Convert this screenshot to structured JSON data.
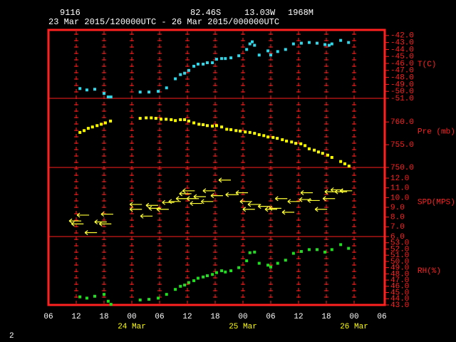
{
  "header": {
    "station": "9116",
    "lat": "82.46S",
    "lon": "13.03W",
    "elevation": "1968M",
    "period": "23 Mar 2015/120000UTC - 26 Mar 2015/000000UTC"
  },
  "page_number": "2",
  "chart_data": [
    {
      "type": "scatter",
      "marker": "square",
      "ylabel": "T(C)",
      "color": "#33d6e6",
      "xlim": [
        0,
        72
      ],
      "ylim": [
        -51,
        -41.2
      ],
      "yticks": [
        {
          "value": -42,
          "label": "-42.0"
        },
        {
          "value": -43,
          "label": "-43.0"
        },
        {
          "value": -44,
          "label": "-44.0"
        },
        {
          "value": -45,
          "label": "-45.0"
        },
        {
          "value": -46,
          "label": "-46.0"
        },
        {
          "value": -47,
          "label": "-47.0"
        },
        {
          "value": -48,
          "label": "-48.0"
        },
        {
          "value": -49,
          "label": "-49.0"
        },
        {
          "value": -50,
          "label": "-50.0"
        },
        {
          "value": -51,
          "label": "-51.0"
        }
      ],
      "x": [
        6.8,
        8.3,
        10.0,
        12.0,
        12.9,
        13.5,
        19.8,
        21.7,
        23.7,
        25.5,
        27.4,
        28.5,
        29.4,
        30.3,
        31.4,
        32.3,
        33.4,
        34.3,
        35.4,
        36.3,
        37.4,
        38.2,
        39.4,
        41.1,
        42.8,
        43.5,
        44.0,
        44.5,
        45.5,
        47.4,
        48.0,
        49.5,
        51.2,
        52.9,
        54.6,
        56.3,
        58.0,
        59.7,
        60.6,
        61.2,
        63.1,
        64.8
      ],
      "values": [
        -49.6,
        -49.8,
        -49.7,
        -50.3,
        -50.8,
        -50.8,
        -50.1,
        -50.1,
        -50.0,
        -49.5,
        -48.2,
        -47.6,
        -47.4,
        -47.0,
        -46.4,
        -46.1,
        -46.1,
        -45.9,
        -45.9,
        -45.4,
        -45.3,
        -45.3,
        -45.2,
        -44.9,
        -44.0,
        -43.2,
        -42.9,
        -43.4,
        -44.8,
        -44.2,
        -44.8,
        -44.3,
        -44.0,
        -43.2,
        -43.1,
        -43.0,
        -43.1,
        -43.3,
        -43.4,
        -43.2,
        -42.7,
        -43.0
      ]
    },
    {
      "type": "scatter",
      "marker": "square",
      "ylabel": "Pre (mb)",
      "color": "#ffff00",
      "xlim": [
        0,
        72
      ],
      "ylim": [
        750,
        765.2
      ],
      "yticks": [
        {
          "value": 750,
          "label": "750.0"
        },
        {
          "value": 755,
          "label": "755.0"
        },
        {
          "value": 760,
          "label": "760.0"
        }
      ],
      "x": [
        6.8,
        7.7,
        8.6,
        9.5,
        10.5,
        11.4,
        12.3,
        13.4,
        19.8,
        21.1,
        22.2,
        23.2,
        24.3,
        25.4,
        26.5,
        27.4,
        28.5,
        29.4,
        30.3,
        31.4,
        32.5,
        33.4,
        34.3,
        35.4,
        36.3,
        37.4,
        38.5,
        39.4,
        40.5,
        41.4,
        42.5,
        43.5,
        44.5,
        45.5,
        46.5,
        47.4,
        48.5,
        49.4,
        50.5,
        51.4,
        52.5,
        53.4,
        54.5,
        55.4,
        56.3,
        57.4,
        58.3,
        59.2,
        60.3,
        61.2,
        63.1,
        64.0,
        64.9
      ],
      "values": [
        757.7,
        758.1,
        758.6,
        758.9,
        759.2,
        759.5,
        759.8,
        760.2,
        760.8,
        760.9,
        760.9,
        760.8,
        760.6,
        760.6,
        760.5,
        760.3,
        760.5,
        760.5,
        760.2,
        759.8,
        759.5,
        759.4,
        759.2,
        759.1,
        759.2,
        758.9,
        758.4,
        758.3,
        758.1,
        758.0,
        757.8,
        757.7,
        757.5,
        757.2,
        757.0,
        756.7,
        756.6,
        756.4,
        756.1,
        755.8,
        755.6,
        755.3,
        755.2,
        754.8,
        754.1,
        753.8,
        753.4,
        753.1,
        752.7,
        752.2,
        751.3,
        750.8,
        750.3
      ]
    },
    {
      "type": "scatter",
      "marker": "arrow",
      "ylabel": "SPD(MPS)",
      "color": "#ffff33",
      "xlim": [
        0,
        72
      ],
      "ylim": [
        6,
        13.1
      ],
      "yticks": [
        {
          "value": 6,
          "label": "6.0"
        },
        {
          "value": 7,
          "label": "7.0"
        },
        {
          "value": 8,
          "label": "8.0"
        },
        {
          "value": 9,
          "label": "9.0"
        },
        {
          "value": 10,
          "label": "10.0"
        },
        {
          "value": 11,
          "label": "11.0"
        },
        {
          "value": 12,
          "label": "12.0"
        }
      ],
      "x": [
        5.7,
        6.2,
        7.4,
        9.1,
        11.2,
        12.2,
        12.6,
        18.8,
        18.8,
        21.1,
        22.3,
        22.9,
        24.6,
        25.8,
        27.2,
        28.8,
        29.5,
        30.2,
        31.1,
        31.8,
        32.6,
        34.2,
        34.6,
        36.3,
        38.0,
        39.5,
        41.7,
        42.6,
        43.2,
        44.3,
        46.5,
        48.0,
        48.9,
        50.2,
        51.7,
        52.9,
        55.4,
        55.7,
        57.2,
        58.8,
        60.5,
        60.9,
        62.2,
        63.1,
        64.2
      ],
      "values": [
        7.6,
        7.3,
        8.2,
        6.4,
        7.5,
        7.3,
        8.3,
        9.3,
        8.8,
        8.1,
        9.2,
        8.9,
        8.8,
        9.5,
        9.6,
        9.9,
        10.4,
        10.7,
        9.9,
        9.4,
        10.1,
        9.6,
        10.7,
        10.2,
        11.8,
        10.3,
        10.5,
        9.6,
        8.8,
        9.3,
        9.1,
        8.8,
        8.9,
        9.9,
        8.5,
        9.6,
        9.8,
        10.5,
        9.7,
        8.8,
        9.9,
        10.6,
        10.8,
        10.6,
        10.7
      ]
    },
    {
      "type": "scatter",
      "marker": "square",
      "ylabel": "RH(%)",
      "color": "#22dd22",
      "xlim": [
        0,
        72
      ],
      "ylim": [
        43,
        54
      ],
      "yticks": [
        {
          "value": 43,
          "label": "43.0"
        },
        {
          "value": 44,
          "label": "44.0"
        },
        {
          "value": 45,
          "label": "45.0"
        },
        {
          "value": 46,
          "label": "46.0"
        },
        {
          "value": 47,
          "label": "47.0"
        },
        {
          "value": 48,
          "label": "48.0"
        },
        {
          "value": 49,
          "label": "49.0"
        },
        {
          "value": 50,
          "label": "50.0"
        },
        {
          "value": 51,
          "label": "51.0"
        },
        {
          "value": 52,
          "label": "52.0"
        },
        {
          "value": 53,
          "label": "53.0"
        }
      ],
      "xticks": [
        {
          "value": 0,
          "label": "06"
        },
        {
          "value": 6,
          "label": "12"
        },
        {
          "value": 12,
          "label": "18"
        },
        {
          "value": 18,
          "label": "00"
        },
        {
          "value": 24,
          "label": "06"
        },
        {
          "value": 30,
          "label": "12"
        },
        {
          "value": 36,
          "label": "18"
        },
        {
          "value": 42,
          "label": "00"
        },
        {
          "value": 48,
          "label": "06"
        },
        {
          "value": 54,
          "label": "12"
        },
        {
          "value": 60,
          "label": "18"
        },
        {
          "value": 66,
          "label": "00"
        },
        {
          "value": 72,
          "label": "06"
        }
      ],
      "date_ticks": [
        {
          "value": 18,
          "label": "24 Mar"
        },
        {
          "value": 42,
          "label": "25 Mar"
        },
        {
          "value": 66,
          "label": "26 Mar"
        }
      ],
      "x": [
        6.8,
        8.3,
        10.0,
        12.0,
        12.9,
        13.5,
        19.8,
        21.7,
        23.7,
        25.5,
        27.4,
        28.5,
        29.4,
        30.3,
        31.4,
        32.3,
        33.4,
        34.3,
        35.4,
        36.3,
        37.4,
        38.2,
        39.4,
        41.1,
        42.8,
        43.5,
        44.5,
        45.5,
        47.4,
        48.0,
        49.5,
        51.2,
        52.9,
        54.6,
        56.3,
        58.0,
        59.7,
        61.2,
        63.1,
        64.8
      ],
      "values": [
        44.3,
        44.1,
        44.4,
        44.7,
        43.6,
        43.1,
        43.8,
        43.9,
        44.1,
        44.7,
        45.5,
        46.0,
        46.2,
        46.6,
        46.9,
        47.3,
        47.5,
        47.7,
        47.9,
        48.2,
        48.5,
        48.3,
        48.5,
        49.0,
        50.1,
        51.4,
        51.5,
        49.7,
        49.4,
        49.1,
        49.7,
        50.2,
        51.3,
        51.6,
        51.9,
        51.9,
        51.5,
        51.9,
        52.7,
        52.1
      ]
    }
  ]
}
